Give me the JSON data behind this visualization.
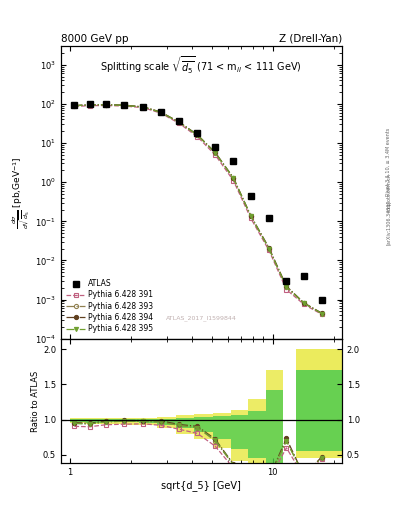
{
  "title_left": "8000 GeV pp",
  "title_right": "Z (Drell-Yan)",
  "main_title": "Splitting scale $\\sqrt{\\overline{d_5}}$ (71 < m$_{ll}$ < 111 GeV)",
  "ylabel_main": "$\\frac{d\\sigma}{d\\sqrt{\\overline{d_5}}}$ [pb,GeV$^{-1}$]",
  "ylabel_ratio": "Ratio to ATLAS",
  "xlabel": "sqrt{d_5} [GeV]",
  "watermark": "ATLAS_2017_I1599844",
  "side_text1": "Rivet 3.1.10, ≥ 3.4M events",
  "side_text2": "mcplots.cern.ch",
  "side_text3": "[arXiv:1306.3436]",
  "atlas_x": [
    1.05,
    1.25,
    1.5,
    1.85,
    2.3,
    2.8,
    3.45,
    4.25,
    5.2,
    6.4,
    7.8,
    9.6,
    11.7,
    14.3,
    17.5
  ],
  "atlas_y": [
    95.0,
    100.0,
    98.0,
    94.0,
    85.0,
    63.0,
    37.0,
    18.0,
    8.0,
    3.5,
    0.45,
    0.12,
    0.003,
    0.004,
    0.00095
  ],
  "py391_x": [
    1.05,
    1.25,
    1.5,
    1.85,
    2.3,
    2.8,
    3.45,
    4.25,
    5.2,
    6.4,
    7.8,
    9.6,
    11.7,
    14.3,
    17.5
  ],
  "py391_y": [
    86.0,
    90.0,
    91.0,
    88.0,
    80.0,
    58.0,
    32.0,
    14.5,
    5.0,
    1.1,
    0.12,
    0.018,
    0.0018,
    0.00075,
    0.00042
  ],
  "py393_x": [
    1.05,
    1.25,
    1.5,
    1.85,
    2.3,
    2.8,
    3.45,
    4.25,
    5.2,
    6.4,
    7.8,
    9.6,
    11.7,
    14.3,
    17.5
  ],
  "py393_y": [
    90.0,
    94.0,
    95.0,
    92.0,
    83.0,
    61.0,
    34.0,
    16.0,
    5.6,
    1.25,
    0.135,
    0.02,
    0.0021,
    0.0008,
    0.00044
  ],
  "py394_x": [
    1.05,
    1.25,
    1.5,
    1.85,
    2.3,
    2.8,
    3.45,
    4.25,
    5.2,
    6.4,
    7.8,
    9.6,
    11.7,
    14.3,
    17.5
  ],
  "py394_y": [
    91.0,
    95.0,
    96.0,
    93.0,
    84.0,
    62.0,
    34.5,
    16.3,
    5.8,
    1.3,
    0.14,
    0.021,
    0.0022,
    0.00082,
    0.00045
  ],
  "py395_x": [
    1.05,
    1.25,
    1.5,
    1.85,
    2.3,
    2.8,
    3.45,
    4.25,
    5.2,
    6.4,
    7.8,
    9.6,
    11.7,
    14.3,
    17.5
  ],
  "py395_y": [
    90.0,
    94.0,
    95.0,
    92.0,
    83.0,
    61.0,
    34.0,
    16.0,
    5.7,
    1.27,
    0.138,
    0.02,
    0.0021,
    0.00081,
    0.00044
  ],
  "color_391": "#c06080",
  "color_393": "#908050",
  "color_394": "#604020",
  "color_395": "#70a030",
  "band_yellow_edges": [
    1.0,
    13.0,
    20.0
  ],
  "band_yellow_lo": [
    0.88,
    0.45
  ],
  "band_yellow_hi": [
    1.12,
    2.0
  ],
  "band_green_edges": [
    1.0,
    13.0,
    20.0
  ],
  "band_green_lo": [
    0.92,
    0.55
  ],
  "band_green_hi": [
    1.08,
    1.7
  ],
  "band_left_yellow_x": [
    1.0,
    1.2,
    1.45,
    1.8,
    2.2,
    2.7,
    3.35,
    4.1,
    5.05,
    6.2,
    7.55,
    9.25,
    11.3
  ],
  "band_left_yellow_lo": [
    0.95,
    0.94,
    0.94,
    0.93,
    0.92,
    0.88,
    0.8,
    0.72,
    0.6,
    0.42,
    0.3,
    0.2,
    0.5
  ],
  "band_left_yellow_hi": [
    1.02,
    1.03,
    1.03,
    1.03,
    1.03,
    1.04,
    1.06,
    1.08,
    1.1,
    1.14,
    1.3,
    1.7,
    1.9
  ],
  "band_left_green_x": [
    1.0,
    1.2,
    1.45,
    1.8,
    2.2,
    2.7,
    3.35,
    4.1,
    5.05,
    6.2,
    7.55,
    9.25,
    11.3
  ],
  "band_left_green_lo": [
    0.97,
    0.96,
    0.97,
    0.97,
    0.96,
    0.93,
    0.88,
    0.82,
    0.72,
    0.58,
    0.45,
    0.38,
    0.58
  ],
  "band_left_green_hi": [
    1.005,
    1.01,
    1.01,
    1.01,
    1.01,
    1.01,
    1.03,
    1.04,
    1.05,
    1.07,
    1.12,
    1.42,
    1.72
  ],
  "xlim": [
    0.9,
    22.0
  ],
  "ylim_main": [
    0.0001,
    3000.0
  ],
  "ylim_ratio": [
    0.38,
    2.15
  ],
  "ratio_yticks": [
    0.5,
    1.0,
    1.5,
    2.0
  ]
}
